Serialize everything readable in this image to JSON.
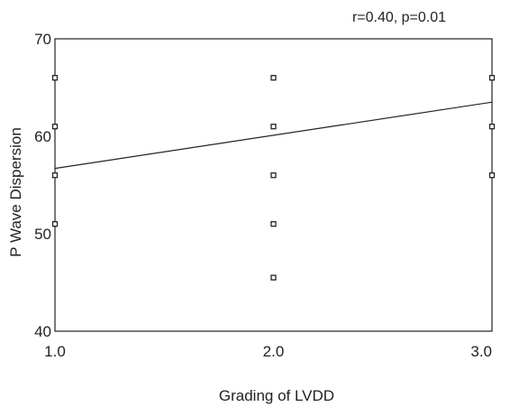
{
  "chart_data": {
    "type": "scatter",
    "title": "",
    "annotation": "r=0.40, p=0.01",
    "xlabel": "Grading of LVDD",
    "ylabel": "P Wave Dispersion",
    "xlim": [
      1.0,
      3.0
    ],
    "ylim": [
      40,
      70
    ],
    "x_ticks": [
      "1.0",
      "2.0",
      "3.0"
    ],
    "x_tick_values": [
      1.0,
      2.0,
      3.0
    ],
    "y_ticks": [
      "40",
      "50",
      "60",
      "70"
    ],
    "y_tick_values": [
      40,
      50,
      60,
      70
    ],
    "grid": false,
    "points": [
      {
        "x": 1.0,
        "y": 66
      },
      {
        "x": 1.0,
        "y": 61
      },
      {
        "x": 1.0,
        "y": 56
      },
      {
        "x": 1.0,
        "y": 51
      },
      {
        "x": 2.0,
        "y": 66
      },
      {
        "x": 2.0,
        "y": 61
      },
      {
        "x": 2.0,
        "y": 56
      },
      {
        "x": 2.0,
        "y": 51
      },
      {
        "x": 2.0,
        "y": 45.5
      },
      {
        "x": 3.0,
        "y": 66
      },
      {
        "x": 3.0,
        "y": 61
      },
      {
        "x": 3.0,
        "y": 56
      }
    ],
    "trendline": {
      "x": [
        1.0,
        3.0
      ],
      "y": [
        56.7,
        63.5
      ]
    }
  }
}
